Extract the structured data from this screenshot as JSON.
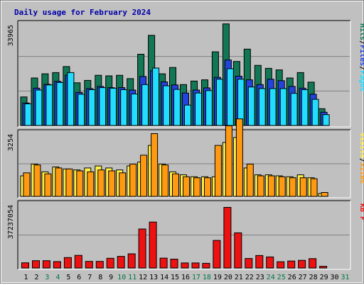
{
  "chart_data": {
    "type": "bar",
    "title": "Daily usage for February 2024",
    "colors": {
      "hits": "#117755",
      "files": "#2244dd",
      "pages": "#22ddff",
      "visits": "#ffee44",
      "sites": "#ff9911",
      "kbytes": "#ee1111",
      "weekend": "#007744",
      "weekday": "#000000"
    },
    "x": [
      "1",
      "2",
      "3",
      "4",
      "5",
      "6",
      "7",
      "8",
      "9",
      "10",
      "11",
      "12",
      "13",
      "14",
      "15",
      "16",
      "17",
      "18",
      "19",
      "20",
      "21",
      "22",
      "23",
      "24",
      "25",
      "26",
      "27",
      "28",
      "29",
      "30",
      "31"
    ],
    "weekend_days": [
      3,
      4,
      10,
      11,
      17,
      18,
      24,
      25,
      31
    ],
    "panels": [
      {
        "id": "hits",
        "max_label": "33965",
        "max": 33965,
        "legend": [
          "Pages",
          "Files",
          "Hits"
        ],
        "series": [
          {
            "name": "Hits",
            "values": [
              9500,
              15800,
              17200,
              17600,
              19600,
              14200,
              15000,
              16700,
              16500,
              16700,
              15600,
              23700,
              30000,
              17200,
              19300,
              13600,
              14800,
              15200,
              24500,
              33800,
              21300,
              25400,
              20000,
              19000,
              18500,
              15800,
              17600,
              14400,
              5600,
              0,
              0
            ]
          },
          {
            "name": "Files",
            "values": [
              7500,
              12400,
              13700,
              14700,
              16700,
              11000,
              12300,
              13000,
              12600,
              12600,
              11800,
              16300,
              18200,
              14500,
              13500,
              10800,
              11800,
              12500,
              16000,
              21800,
              16400,
              15200,
              13600,
              15400,
              14900,
              13000,
              12400,
              10400,
              4400,
              0,
              0
            ]
          },
          {
            "name": "Pages",
            "values": [
              7200,
              11800,
              13500,
              14300,
              17600,
              10400,
              11900,
              12600,
              12400,
              11900,
              10500,
              13600,
              19100,
              13200,
              12000,
              6800,
              10800,
              11600,
              15400,
              18900,
              15400,
              12800,
              12300,
              12300,
              12300,
              10700,
              11900,
              8700,
              3600,
              0,
              0
            ]
          }
        ]
      },
      {
        "id": "visits",
        "max_label": "3254",
        "max": 3254,
        "legend": [
          "Sites",
          "Visits"
        ],
        "series": [
          {
            "name": "Visits",
            "values": [
              1050,
              1650,
              1250,
              1500,
              1400,
              1350,
              1450,
              1550,
              1450,
              1350,
              1550,
              1750,
              2600,
              1650,
              1250,
              1100,
              1000,
              1000,
              1000,
              2750,
              3000,
              1450,
              1100,
              1100,
              1050,
              1000,
              1100,
              950,
              150,
              0,
              0
            ]
          },
          {
            "name": "Sites",
            "values": [
              1200,
              1600,
              1150,
              1450,
              1400,
              1300,
              1250,
              1350,
              1300,
              1200,
              1650,
              2100,
              3200,
              1600,
              1150,
              1000,
              950,
              950,
              2600,
              3600,
              3950,
              1650,
              1050,
              1050,
              1000,
              950,
              950,
              900,
              200,
              0,
              0
            ]
          }
        ]
      },
      {
        "id": "kbytes",
        "max_label": "37237054",
        "max": 37237054,
        "legend": [
          "KB F"
        ],
        "series": [
          {
            "name": "KB F",
            "values": [
              3000000,
              4200000,
              4200000,
              3700000,
              6000000,
              7300000,
              3800000,
              3800000,
              5600000,
              6700000,
              8200000,
              22500000,
              26500000,
              5700000,
              5100000,
              2900000,
              2900000,
              2700000,
              15900000,
              35000000,
              20300000,
              5500000,
              7200000,
              6400000,
              3600000,
              4000000,
              4400000,
              5400000,
              1000000,
              0,
              0
            ]
          }
        ]
      }
    ]
  }
}
